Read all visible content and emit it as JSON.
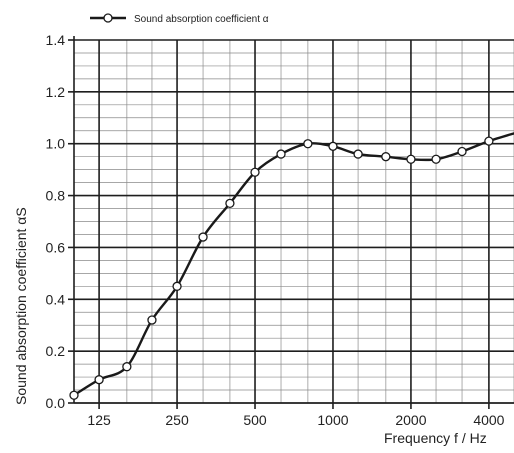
{
  "chart_data": {
    "type": "line",
    "legend": {
      "label": "Sound absorption coefficient α",
      "position": "top-left"
    },
    "xlabel": "Frequency f / Hz",
    "ylabel": "Sound absorption coefficient αS",
    "x_scale": "log",
    "x_ticks": [
      {
        "value": 125,
        "label": "125"
      },
      {
        "value": 250,
        "label": "250"
      },
      {
        "value": 500,
        "label": "500"
      },
      {
        "value": 1000,
        "label": "1000"
      },
      {
        "value": 2000,
        "label": "2000"
      },
      {
        "value": 4000,
        "label": "4000"
      }
    ],
    "xlim": [
      100,
      5000
    ],
    "ylim": [
      0,
      1.4
    ],
    "y_ticks": [
      {
        "value": 0.0,
        "label": "0.0"
      },
      {
        "value": 0.2,
        "label": "0.2"
      },
      {
        "value": 0.4,
        "label": "0.4"
      },
      {
        "value": 0.6,
        "label": "0.6"
      },
      {
        "value": 0.8,
        "label": "0.8"
      },
      {
        "value": 1.0,
        "label": "1.0"
      },
      {
        "value": 1.2,
        "label": "1.2"
      },
      {
        "value": 1.4,
        "label": "1.4"
      }
    ],
    "grid": true,
    "series": [
      {
        "name": "Sound absorption coefficient α",
        "x": [
          100,
          125,
          160,
          200,
          250,
          315,
          400,
          500,
          630,
          800,
          1000,
          1250,
          1600,
          2000,
          2500,
          3150,
          4000,
          5000
        ],
        "y": [
          0.03,
          0.09,
          0.14,
          0.32,
          0.45,
          0.64,
          0.77,
          0.89,
          0.96,
          1.0,
          0.99,
          0.96,
          0.95,
          0.94,
          0.94,
          0.97,
          1.01,
          1.04
        ]
      }
    ]
  }
}
